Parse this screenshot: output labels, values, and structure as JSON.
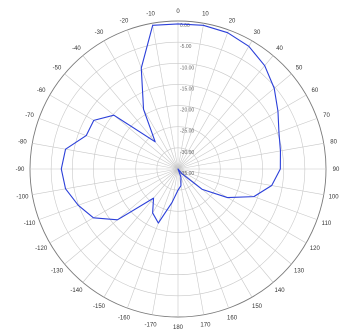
{
  "chart_data": {
    "type": "polar",
    "title": "",
    "angle_unit": "degrees",
    "angle_zero": "top",
    "angle_direction": "clockwise",
    "radial_labels": [
      "0.00",
      "-5.00",
      "-10.00",
      "-15.00",
      "-20.00",
      "-25.00",
      "-30.00",
      "-35.00"
    ],
    "radial_values": [
      0,
      -5,
      -10,
      -15,
      -20,
      -25,
      -30,
      -35
    ],
    "rlim": [
      -35,
      0
    ],
    "angle_labels": [
      {
        "angle": 0,
        "text": "0"
      },
      {
        "angle": 10,
        "text": "10"
      },
      {
        "angle": 20,
        "text": "20"
      },
      {
        "angle": 30,
        "text": "30"
      },
      {
        "angle": 40,
        "text": "40"
      },
      {
        "angle": 50,
        "text": "50"
      },
      {
        "angle": 60,
        "text": "60"
      },
      {
        "angle": 70,
        "text": "70"
      },
      {
        "angle": 80,
        "text": "80"
      },
      {
        "angle": 90,
        "text": "90"
      },
      {
        "angle": 100,
        "text": "100"
      },
      {
        "angle": 110,
        "text": "110"
      },
      {
        "angle": 120,
        "text": "120"
      },
      {
        "angle": 130,
        "text": "130"
      },
      {
        "angle": 140,
        "text": "140"
      },
      {
        "angle": 150,
        "text": "150"
      },
      {
        "angle": 160,
        "text": "160"
      },
      {
        "angle": 170,
        "text": "170"
      },
      {
        "angle": 180,
        "text": "180"
      },
      {
        "angle": -170,
        "text": "-170"
      },
      {
        "angle": -160,
        "text": "-160"
      },
      {
        "angle": -150,
        "text": "-150"
      },
      {
        "angle": -140,
        "text": "-140"
      },
      {
        "angle": -130,
        "text": "-130"
      },
      {
        "angle": -120,
        "text": "-120"
      },
      {
        "angle": -110,
        "text": "-110"
      },
      {
        "angle": -100,
        "text": "-100"
      },
      {
        "angle": -90,
        "text": "-90"
      },
      {
        "angle": -80,
        "text": "-80"
      },
      {
        "angle": -70,
        "text": "-70"
      },
      {
        "angle": -60,
        "text": "-60"
      },
      {
        "angle": -50,
        "text": "-50"
      },
      {
        "angle": -40,
        "text": "-40"
      },
      {
        "angle": -30,
        "text": "-30"
      },
      {
        "angle": -20,
        "text": "-20"
      },
      {
        "angle": -10,
        "text": "-10"
      }
    ],
    "grid": true,
    "series": [
      {
        "color": "#2b3fd9",
        "points": [
          [
            -10,
            -0.5
          ],
          [
            0,
            -0.7
          ],
          [
            10,
            -0.5
          ],
          [
            20,
            -0.7
          ],
          [
            30,
            -1.5
          ],
          [
            40,
            -3.1
          ],
          [
            50,
            -5.3
          ],
          [
            60,
            -7.7
          ],
          [
            70,
            -9.6
          ],
          [
            80,
            -10.4
          ],
          [
            90,
            -10.8
          ],
          [
            100,
            -12.5
          ],
          [
            110,
            -15.9
          ],
          [
            120,
            -21.5
          ],
          [
            130,
            -27.5
          ],
          [
            140,
            -33.5
          ],
          [
            150,
            -35
          ],
          [
            160,
            -33
          ],
          [
            170,
            -31
          ],
          [
            180,
            -30
          ],
          [
            -170,
            -27
          ],
          [
            -160,
            -21.4
          ],
          [
            -150,
            -23
          ],
          [
            -140,
            -26
          ],
          [
            -130,
            -16.3
          ],
          [
            -120,
            -11.9
          ],
          [
            -110,
            -9.9
          ],
          [
            -100,
            -8.0
          ],
          [
            -90,
            -7.4
          ],
          [
            -80,
            -8.0
          ],
          [
            -70,
            -11.9
          ],
          [
            -60,
            -12.0
          ],
          [
            -50,
            -15.2
          ],
          [
            -40,
            -26.6
          ],
          [
            -30,
            -18.7
          ],
          [
            -20,
            -9.6
          ],
          [
            -10,
            -0.5
          ]
        ]
      }
    ]
  }
}
